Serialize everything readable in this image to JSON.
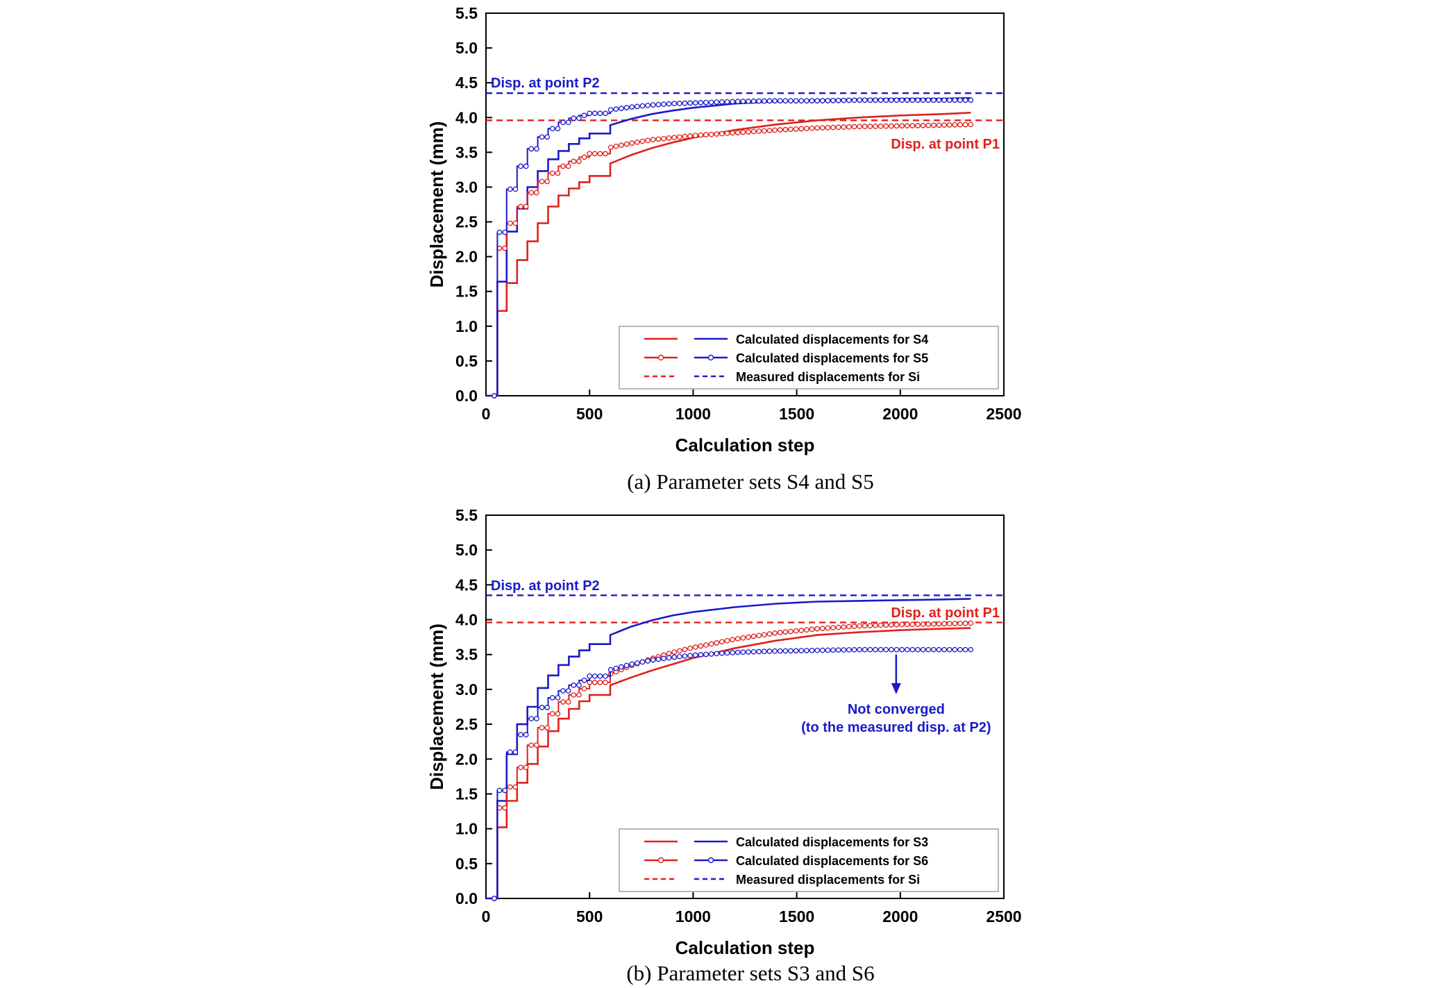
{
  "chart_data": [
    {
      "type": "line",
      "caption": "(a) Parameter sets S4 and S5",
      "xlabel": "Calculation step",
      "ylabel": "Displacement (mm)",
      "xlim": [
        0,
        2500
      ],
      "ylim": [
        0,
        5.5
      ],
      "xticks": [
        "0",
        "500",
        "1000",
        "1500",
        "2000",
        "2500"
      ],
      "yticks": [
        "0.0",
        "0.5",
        "1.0",
        "1.5",
        "2.0",
        "2.5",
        "3.0",
        "3.5",
        "4.0",
        "4.5",
        "5.0",
        "5.5"
      ],
      "grid": false,
      "legend_position": "bottom-right",
      "legend": [
        {
          "text": "Calculated displacements for S4",
          "style": "solid"
        },
        {
          "text": "Calculated displacements for S5",
          "style": "marker"
        },
        {
          "text": "Measured displacements for Si",
          "style": "dashed"
        }
      ],
      "colors": {
        "p1": "#e0201c",
        "p2": "#1a1ac8"
      },
      "measured": [
        {
          "point": "P1",
          "value": 3.96,
          "color": "#e0201c",
          "label": "Disp. at point P1"
        },
        {
          "point": "P2",
          "value": 4.35,
          "color": "#1a1ac8",
          "label": "Disp. at point P2"
        }
      ],
      "series": [
        {
          "set": "S4",
          "point": "P1",
          "style": "solid",
          "color": "#e0201c",
          "x": [
            0,
            40,
            55,
            100,
            150,
            200,
            250,
            300,
            350,
            400,
            450,
            500,
            600,
            700,
            800,
            900,
            1000,
            1200,
            1400,
            1600,
            1800,
            2000,
            2200,
            2340
          ],
          "y": [
            0,
            0,
            1.22,
            1.62,
            1.95,
            2.22,
            2.48,
            2.72,
            2.88,
            2.98,
            3.07,
            3.16,
            3.34,
            3.46,
            3.56,
            3.64,
            3.71,
            3.82,
            3.9,
            3.96,
            4.0,
            4.03,
            4.05,
            4.07
          ]
        },
        {
          "set": "S4",
          "point": "P2",
          "style": "solid",
          "color": "#1a1ac8",
          "x": [
            0,
            40,
            55,
            100,
            150,
            200,
            250,
            300,
            350,
            400,
            450,
            500,
            600,
            700,
            800,
            900,
            1000,
            1200,
            1400,
            1600,
            1800,
            2000,
            2200,
            2340
          ],
          "y": [
            0,
            0,
            1.64,
            2.36,
            2.69,
            3.0,
            3.23,
            3.4,
            3.52,
            3.62,
            3.7,
            3.77,
            3.89,
            3.98,
            4.05,
            4.1,
            4.14,
            4.2,
            4.23,
            4.25,
            4.26,
            4.27,
            4.27,
            4.28
          ]
        },
        {
          "set": "S5",
          "point": "P1",
          "style": "marker",
          "color": "#e0201c",
          "x": [
            0,
            40,
            55,
            100,
            150,
            200,
            250,
            300,
            350,
            400,
            450,
            500,
            600,
            700,
            800,
            900,
            1000,
            1200,
            1400,
            1600,
            1800,
            2000,
            2200,
            2340
          ],
          "y": [
            0,
            0,
            2.12,
            2.48,
            2.72,
            2.92,
            3.08,
            3.2,
            3.3,
            3.37,
            3.43,
            3.48,
            3.57,
            3.63,
            3.68,
            3.71,
            3.74,
            3.78,
            3.82,
            3.85,
            3.87,
            3.88,
            3.89,
            3.9
          ]
        },
        {
          "set": "S5",
          "point": "P2",
          "style": "marker",
          "color": "#1a1ac8",
          "x": [
            0,
            40,
            55,
            100,
            150,
            200,
            250,
            300,
            350,
            400,
            450,
            500,
            600,
            700,
            800,
            900,
            1000,
            1200,
            1400,
            1600,
            1800,
            2000,
            2200,
            2340
          ],
          "y": [
            0,
            0,
            2.35,
            2.97,
            3.3,
            3.55,
            3.72,
            3.84,
            3.93,
            3.99,
            4.03,
            4.06,
            4.11,
            4.15,
            4.18,
            4.2,
            4.21,
            4.23,
            4.24,
            4.24,
            4.25,
            4.25,
            4.25,
            4.25
          ]
        }
      ],
      "annotations": []
    },
    {
      "type": "line",
      "caption": "(b) Parameter sets S3 and S6",
      "xlabel": "Calculation step",
      "ylabel": "Displacement (mm)",
      "xlim": [
        0,
        2500
      ],
      "ylim": [
        0,
        5.5
      ],
      "xticks": [
        "0",
        "500",
        "1000",
        "1500",
        "2000",
        "2500"
      ],
      "yticks": [
        "0.0",
        "0.5",
        "1.0",
        "1.5",
        "2.0",
        "2.5",
        "3.0",
        "3.5",
        "4.0",
        "4.5",
        "5.0",
        "5.5"
      ],
      "grid": false,
      "legend_position": "bottom-right",
      "legend": [
        {
          "text": "Calculated displacements for S3",
          "style": "solid"
        },
        {
          "text": "Calculated displacements for S6",
          "style": "marker"
        },
        {
          "text": "Measured displacements for Si",
          "style": "dashed"
        }
      ],
      "colors": {
        "p1": "#e0201c",
        "p2": "#1a1ac8"
      },
      "measured": [
        {
          "point": "P1",
          "value": 3.96,
          "color": "#e0201c",
          "label": "Disp. at point P1"
        },
        {
          "point": "P2",
          "value": 4.35,
          "color": "#1a1ac8",
          "label": "Disp. at point P2"
        }
      ],
      "series": [
        {
          "set": "S3",
          "point": "P1",
          "style": "solid",
          "color": "#e0201c",
          "x": [
            0,
            40,
            55,
            100,
            150,
            200,
            250,
            300,
            350,
            400,
            450,
            500,
            600,
            700,
            800,
            900,
            1000,
            1200,
            1400,
            1600,
            1800,
            2000,
            2200,
            2340
          ],
          "y": [
            0,
            0,
            1.02,
            1.4,
            1.66,
            1.93,
            2.18,
            2.4,
            2.58,
            2.72,
            2.83,
            2.92,
            3.06,
            3.17,
            3.27,
            3.36,
            3.45,
            3.59,
            3.7,
            3.78,
            3.82,
            3.85,
            3.87,
            3.88
          ]
        },
        {
          "set": "S3",
          "point": "P2",
          "style": "solid",
          "color": "#1a1ac8",
          "x": [
            0,
            40,
            55,
            100,
            150,
            200,
            250,
            300,
            350,
            400,
            450,
            500,
            600,
            700,
            800,
            900,
            1000,
            1200,
            1400,
            1600,
            1800,
            2000,
            2200,
            2340
          ],
          "y": [
            0,
            0,
            1.4,
            2.07,
            2.5,
            2.75,
            3.02,
            3.2,
            3.35,
            3.47,
            3.56,
            3.65,
            3.78,
            3.9,
            3.99,
            4.06,
            4.11,
            4.18,
            4.23,
            4.26,
            4.27,
            4.28,
            4.29,
            4.3
          ]
        },
        {
          "set": "S6",
          "point": "P1",
          "style": "marker",
          "color": "#e0201c",
          "x": [
            0,
            40,
            55,
            100,
            150,
            200,
            250,
            300,
            350,
            400,
            450,
            500,
            600,
            700,
            800,
            900,
            1000,
            1200,
            1400,
            1600,
            1800,
            2000,
            2200,
            2340
          ],
          "y": [
            0,
            0,
            1.3,
            1.6,
            1.88,
            2.2,
            2.45,
            2.65,
            2.82,
            2.92,
            3.01,
            3.1,
            3.22,
            3.34,
            3.44,
            3.53,
            3.6,
            3.72,
            3.81,
            3.87,
            3.91,
            3.93,
            3.94,
            3.95
          ]
        },
        {
          "set": "S6",
          "point": "P2",
          "style": "marker",
          "color": "#1a1ac8",
          "x": [
            0,
            40,
            55,
            100,
            150,
            200,
            250,
            300,
            350,
            400,
            450,
            500,
            600,
            700,
            800,
            900,
            1000,
            1200,
            1400,
            1600,
            1800,
            2000,
            2200,
            2340
          ],
          "y": [
            0,
            0,
            1.55,
            2.1,
            2.35,
            2.58,
            2.74,
            2.88,
            2.98,
            3.06,
            3.13,
            3.19,
            3.28,
            3.36,
            3.42,
            3.46,
            3.49,
            3.53,
            3.55,
            3.56,
            3.57,
            3.57,
            3.57,
            3.57
          ]
        }
      ],
      "annotations": [
        {
          "lines": [
            "Not converged",
            "(to the measured disp. at P2)"
          ],
          "color": "#1a1ac8",
          "arrow_x": 1980,
          "arrow_from_y": 3.5,
          "arrow_to_y": 2.95
        }
      ]
    }
  ]
}
